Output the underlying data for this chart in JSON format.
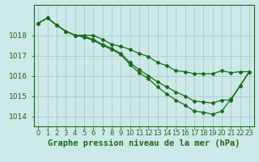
{
  "title": "Graphe pression niveau de la mer (hPa)",
  "xlabel_hours": [
    0,
    1,
    2,
    3,
    4,
    5,
    6,
    7,
    8,
    9,
    10,
    11,
    12,
    13,
    14,
    15,
    16,
    17,
    18,
    19,
    20,
    21,
    22,
    23
  ],
  "line1": [
    1018.6,
    1018.85,
    1018.5,
    1018.2,
    1018.0,
    1018.0,
    1018.0,
    1017.8,
    1017.55,
    1017.45,
    1017.3,
    1017.1,
    1016.95,
    1016.65,
    1016.5,
    1016.25,
    1016.2,
    1016.1,
    1016.1,
    1016.1,
    1016.25,
    1016.15,
    1016.2,
    1016.2
  ],
  "line2": [
    1018.6,
    1018.85,
    1018.5,
    1018.2,
    1018.0,
    1017.95,
    1017.8,
    1017.55,
    1017.35,
    1017.1,
    1016.65,
    1016.3,
    1016.0,
    1015.7,
    1015.45,
    1015.2,
    1015.0,
    1014.75,
    1014.7,
    1014.65,
    1014.8,
    1014.8,
    1015.5,
    1016.2
  ],
  "line3": [
    1018.6,
    1018.85,
    1018.5,
    1018.2,
    1018.0,
    1017.9,
    1017.75,
    1017.5,
    1017.3,
    1017.05,
    1016.55,
    1016.15,
    1015.85,
    1015.45,
    1015.1,
    1014.8,
    1014.55,
    1014.25,
    1014.2,
    1014.1,
    1014.25,
    1014.85,
    1015.5,
    1016.2
  ],
  "ylim": [
    1013.5,
    1019.5
  ],
  "yticks": [
    1014,
    1015,
    1016,
    1017,
    1018
  ],
  "line_color": "#1a6b1a",
  "bg_color": "#cce8e8",
  "grid_color": "#aacccc",
  "tick_label_fontsize": 6.5,
  "title_fontsize": 7.5
}
